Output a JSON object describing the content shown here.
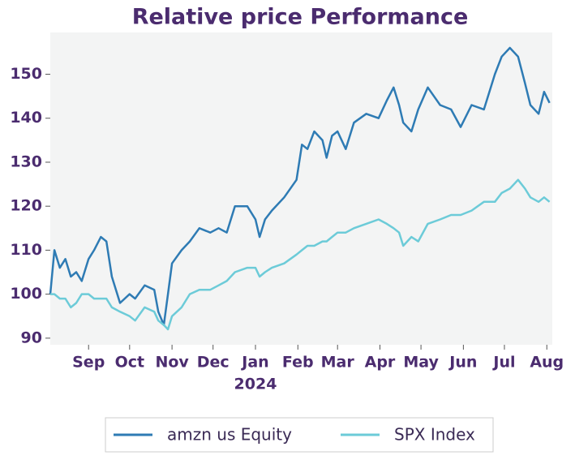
{
  "chart_data": {
    "type": "line",
    "title": "Relative price Performance",
    "x": [
      3,
      6,
      10,
      14,
      18,
      22,
      26,
      31,
      35,
      40,
      44,
      48,
      54,
      61,
      65,
      72,
      79,
      82,
      86,
      89,
      92,
      99,
      105,
      112,
      120,
      126,
      132,
      138,
      147,
      153,
      156,
      160,
      165,
      174,
      183,
      187,
      191,
      196,
      202,
      205,
      209,
      213,
      219,
      225,
      234,
      243,
      249,
      254,
      258,
      261,
      267,
      272,
      279,
      288,
      296,
      303,
      311,
      320,
      328,
      333,
      339,
      345,
      350,
      354,
      360,
      364,
      368
    ],
    "series": [
      {
        "name": "amzn us Equity",
        "color": "#2e7bb4",
        "values": [
          100,
          110,
          106,
          108,
          104,
          105,
          103,
          108,
          110,
          113,
          112,
          104,
          98,
          100,
          99,
          102,
          101,
          96,
          93,
          100,
          107,
          110,
          112,
          115,
          114,
          115,
          114,
          120,
          120,
          117,
          113,
          117,
          119,
          122,
          126,
          134,
          133,
          137,
          135,
          131,
          136,
          137,
          133,
          139,
          141,
          140,
          144,
          147,
          143,
          139,
          137,
          142,
          147,
          143,
          142,
          138,
          143,
          142,
          150,
          154,
          156,
          154,
          148,
          143,
          141,
          146,
          143.5
        ]
      },
      {
        "name": "SPX Index",
        "color": "#6ccbd8",
        "values": [
          100,
          100,
          99,
          99,
          97,
          98,
          100,
          100,
          99,
          99,
          99,
          97,
          96,
          95,
          94,
          97,
          96,
          94,
          93,
          92,
          95,
          97,
          100,
          101,
          101,
          102,
          103,
          105,
          106,
          106,
          104,
          105,
          106,
          107,
          109,
          110,
          111,
          111,
          112,
          112,
          113,
          114,
          114,
          115,
          116,
          117,
          116,
          115,
          114,
          111,
          113,
          112,
          116,
          117,
          118,
          118,
          119,
          121,
          121,
          123,
          124,
          126,
          124,
          122,
          121,
          122,
          121
        ]
      }
    ],
    "xlim": [
      3,
      370
    ],
    "xticks": [
      {
        "value": 31,
        "label": "Sep"
      },
      {
        "value": 61,
        "label": "Oct"
      },
      {
        "value": 92,
        "label": "Nov"
      },
      {
        "value": 122,
        "label": "Dec"
      },
      {
        "value": 153,
        "label": "Jan"
      },
      {
        "value": 184,
        "label": "Feb"
      },
      {
        "value": 213,
        "label": "Mar"
      },
      {
        "value": 244,
        "label": "Apr"
      },
      {
        "value": 274,
        "label": "May"
      },
      {
        "value": 305,
        "label": "Jun"
      },
      {
        "value": 335,
        "label": "Jul"
      },
      {
        "value": 366,
        "label": "Aug"
      }
    ],
    "year_label": "2024",
    "ylim": [
      88.5,
      159.5
    ],
    "yticks": [
      90,
      100,
      110,
      120,
      130,
      140,
      150
    ],
    "background": "#f3f4f4"
  }
}
